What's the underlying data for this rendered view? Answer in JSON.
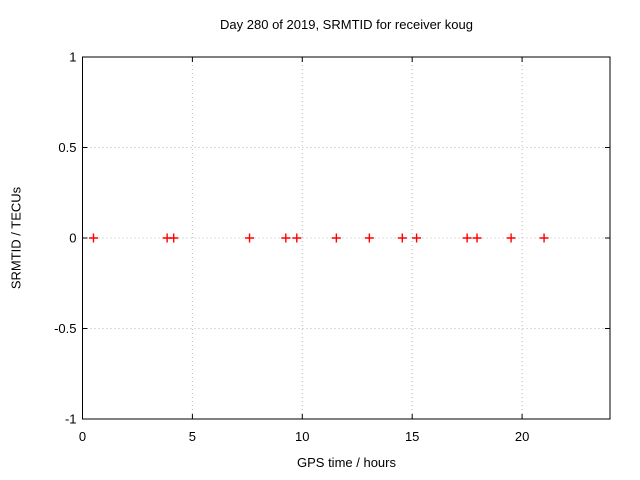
{
  "page": {
    "background": "#ffffff"
  },
  "chart_data": {
    "type": "scatter",
    "title": "Day 280 of 2019, SRMTID for receiver koug",
    "xlabel": "GPS time / hours",
    "ylabel": "SRMTID / TECUs",
    "xlim": [
      0,
      24
    ],
    "ylim": [
      -1,
      1
    ],
    "xticks": [
      0,
      5,
      10,
      15,
      20
    ],
    "xtick_labels": [
      "0",
      "5",
      "10",
      "15",
      "20"
    ],
    "yticks": [
      1,
      0.5,
      0,
      -0.5,
      -1
    ],
    "ytick_labels": [
      "1",
      "0.5",
      "0",
      "-0.5",
      "-1"
    ],
    "grid": true,
    "grid_style": "dotted",
    "legend": "none",
    "marker": "plus",
    "colors": {
      "marker": "#ff0000",
      "grid": "#b9b9b9",
      "axis": "#000000",
      "text": "#000000"
    },
    "series": [
      {
        "name": "SRMTID",
        "x": [
          0.5,
          3.85,
          4.15,
          7.6,
          9.25,
          9.75,
          11.55,
          13.05,
          14.55,
          15.2,
          17.5,
          17.95,
          19.5,
          21.0
        ],
        "y": [
          0,
          0,
          0,
          0,
          0,
          0,
          0,
          0,
          0,
          0,
          0,
          0,
          0,
          0
        ]
      }
    ]
  }
}
